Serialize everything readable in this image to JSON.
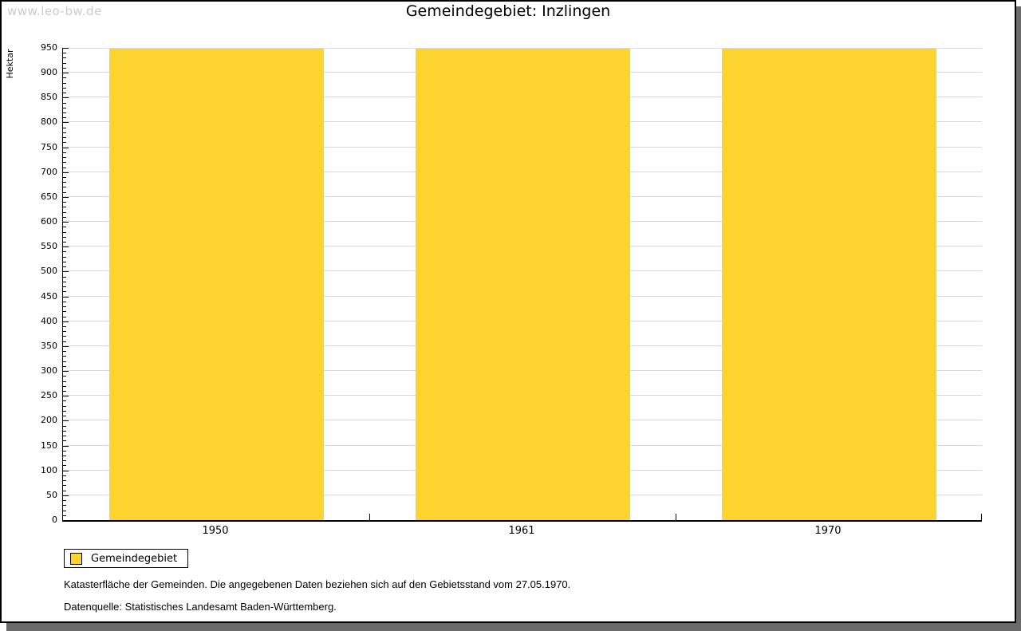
{
  "watermark": "www.leo-bw.de",
  "title": "Gemeindegebiet: Inzlingen",
  "notes": [
    "Katasterfläche der Gemeinden. Die angegebenen Daten beziehen sich auf den Gebietsstand vom 27.05.1970.",
    "Datenquelle: Statistisches Landesamt Baden-Württemberg."
  ],
  "chart_data": {
    "type": "bar",
    "title": "Gemeindegebiet: Inzlingen",
    "categories": [
      "1950",
      "1961",
      "1970"
    ],
    "series": [
      {
        "name": "Gemeindegebiet",
        "values": [
          948,
          948,
          948
        ]
      }
    ],
    "xlabel": "",
    "ylabel": "Hektar",
    "ylim": [
      0,
      950
    ],
    "y_major_step": 50,
    "y_minor_step": 10,
    "grid": true,
    "legend_position": "bottom-left",
    "bar_color": "#fdd42e",
    "gridline_color": "#d9d9d9"
  },
  "colors": {
    "bar": "#fdd42e",
    "shadow": "#6b6b6b",
    "watermark": "#cbcbcb",
    "gridline": "#d9d9d9"
  }
}
